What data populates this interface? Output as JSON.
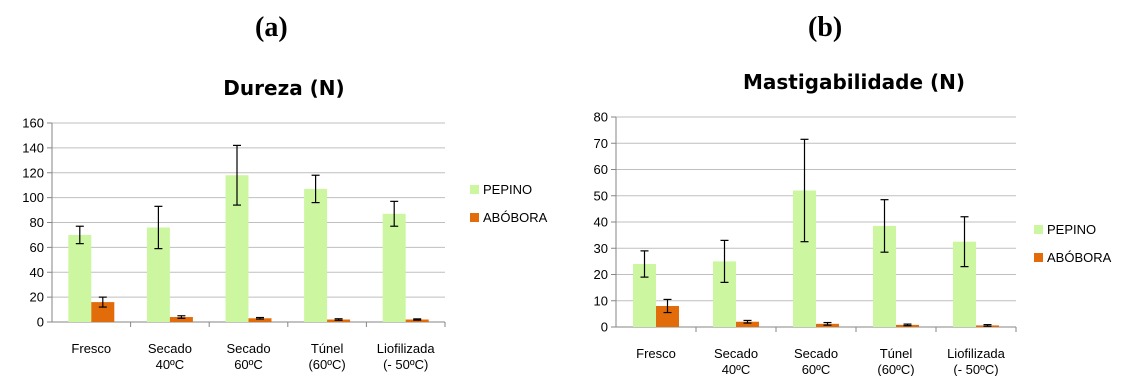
{
  "panels": [
    {
      "label": "(a)"
    },
    {
      "label": "(b)"
    }
  ],
  "chart_data": [
    {
      "type": "bar",
      "title": "Dureza (N)",
      "categories": [
        [
          "Fresco"
        ],
        [
          "Secado",
          "40ºC"
        ],
        [
          "Secado",
          "60ºC"
        ],
        [
          "Túnel",
          "(60ºC)"
        ],
        [
          "Liofilizada",
          "(- 50ºC)"
        ]
      ],
      "series": [
        {
          "name": "PEPINO",
          "color": "#ccf7a0",
          "values": [
            70,
            76,
            118,
            107,
            87
          ],
          "errors": [
            7,
            17,
            24,
            11,
            10
          ]
        },
        {
          "name": "ABÓBORA",
          "color": "#e36c0a",
          "values": [
            16,
            4,
            3,
            2,
            2
          ],
          "errors": [
            4,
            1,
            0.6,
            0.6,
            0.5
          ]
        }
      ],
      "ylim": [
        0,
        160
      ],
      "yticks": [
        0,
        20,
        40,
        60,
        80,
        100,
        120,
        140,
        160
      ],
      "grid": true,
      "legend": "right"
    },
    {
      "type": "bar",
      "title": "Mastigabilidade (N)",
      "categories": [
        [
          "Fresco"
        ],
        [
          "Secado",
          "40ºC"
        ],
        [
          "Secado",
          "60ºC"
        ],
        [
          "Túnel",
          "(60ºC)"
        ],
        [
          "Liofilizada",
          "(- 50ºC)"
        ]
      ],
      "series": [
        {
          "name": "PEPINO",
          "color": "#ccf7a0",
          "values": [
            24,
            25,
            52,
            38.5,
            32.5
          ],
          "errors": [
            5,
            8,
            19.5,
            10,
            9.5
          ]
        },
        {
          "name": "ABÓBORA",
          "color": "#e36c0a",
          "values": [
            8,
            2,
            1.2,
            0.8,
            0.6
          ],
          "errors": [
            2.5,
            0.5,
            0.5,
            0.3,
            0.3
          ]
        }
      ],
      "ylim": [
        0,
        80
      ],
      "yticks": [
        0,
        10,
        20,
        30,
        40,
        50,
        60,
        70,
        80
      ],
      "grid": true,
      "legend": "right"
    }
  ]
}
